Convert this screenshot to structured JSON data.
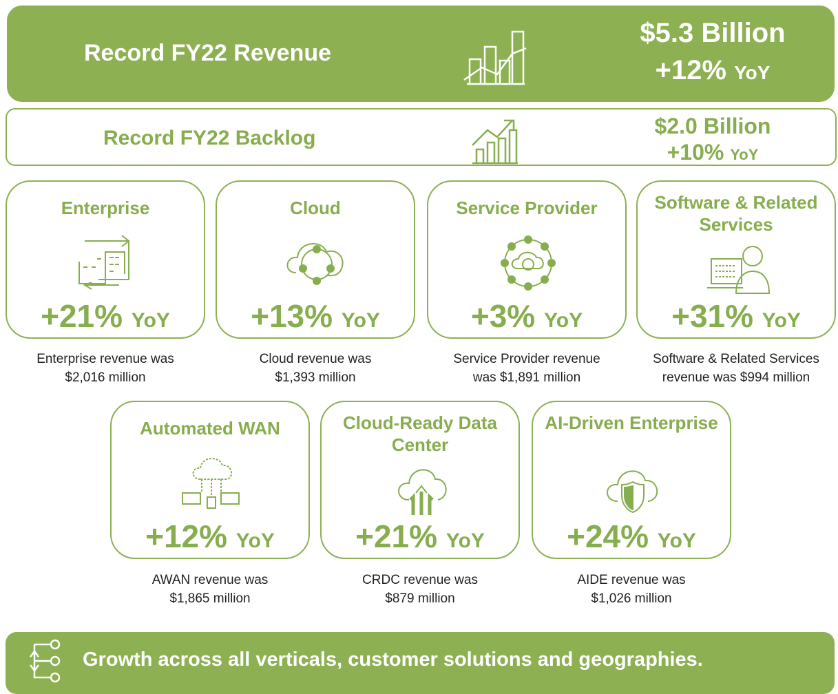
{
  "revenue": {
    "title": "Record FY22 Revenue",
    "amount": "$5.3 Billion",
    "growth": "+12%",
    "unit": "YoY"
  },
  "backlog": {
    "title": "Record FY22 Backlog",
    "amount": "$2.0 Billion",
    "growth": "+10%",
    "unit": "YoY"
  },
  "cards": [
    {
      "title": "Enterprise",
      "growth": "+21%",
      "unit": "YoY",
      "description": [
        "Enterprise revenue was",
        "$2,016 million"
      ]
    },
    {
      "title": "Cloud",
      "growth": "+13%",
      "unit": "YoY",
      "description": [
        "Cloud revenue was",
        "$1,393 million"
      ]
    },
    {
      "title": "Service Provider",
      "growth": "+3%",
      "unit": "YoY",
      "description": [
        "Service Provider revenue",
        "was $1,891 million"
      ]
    },
    {
      "title": "Software & Related Services",
      "growth": "+31%",
      "unit": "YoY",
      "description": [
        "Software & Related Services",
        "revenue was $994 million"
      ]
    },
    {
      "title": "Automated WAN",
      "growth": "+12%",
      "unit": "YoY",
      "description": [
        "AWAN revenue was",
        "$1,865 million"
      ]
    },
    {
      "title": "Cloud-Ready Data Center",
      "growth": "+21%",
      "unit": "YoY",
      "description": [
        "CRDC revenue was",
        "$879 million"
      ]
    },
    {
      "title": "AI-Driven Enterprise",
      "growth": "+24%",
      "unit": "YoY",
      "description": [
        "AIDE revenue was",
        "$1,026 million"
      ]
    }
  ],
  "footer": {
    "text": "Growth across all verticals, customer solutions and geographies."
  }
}
